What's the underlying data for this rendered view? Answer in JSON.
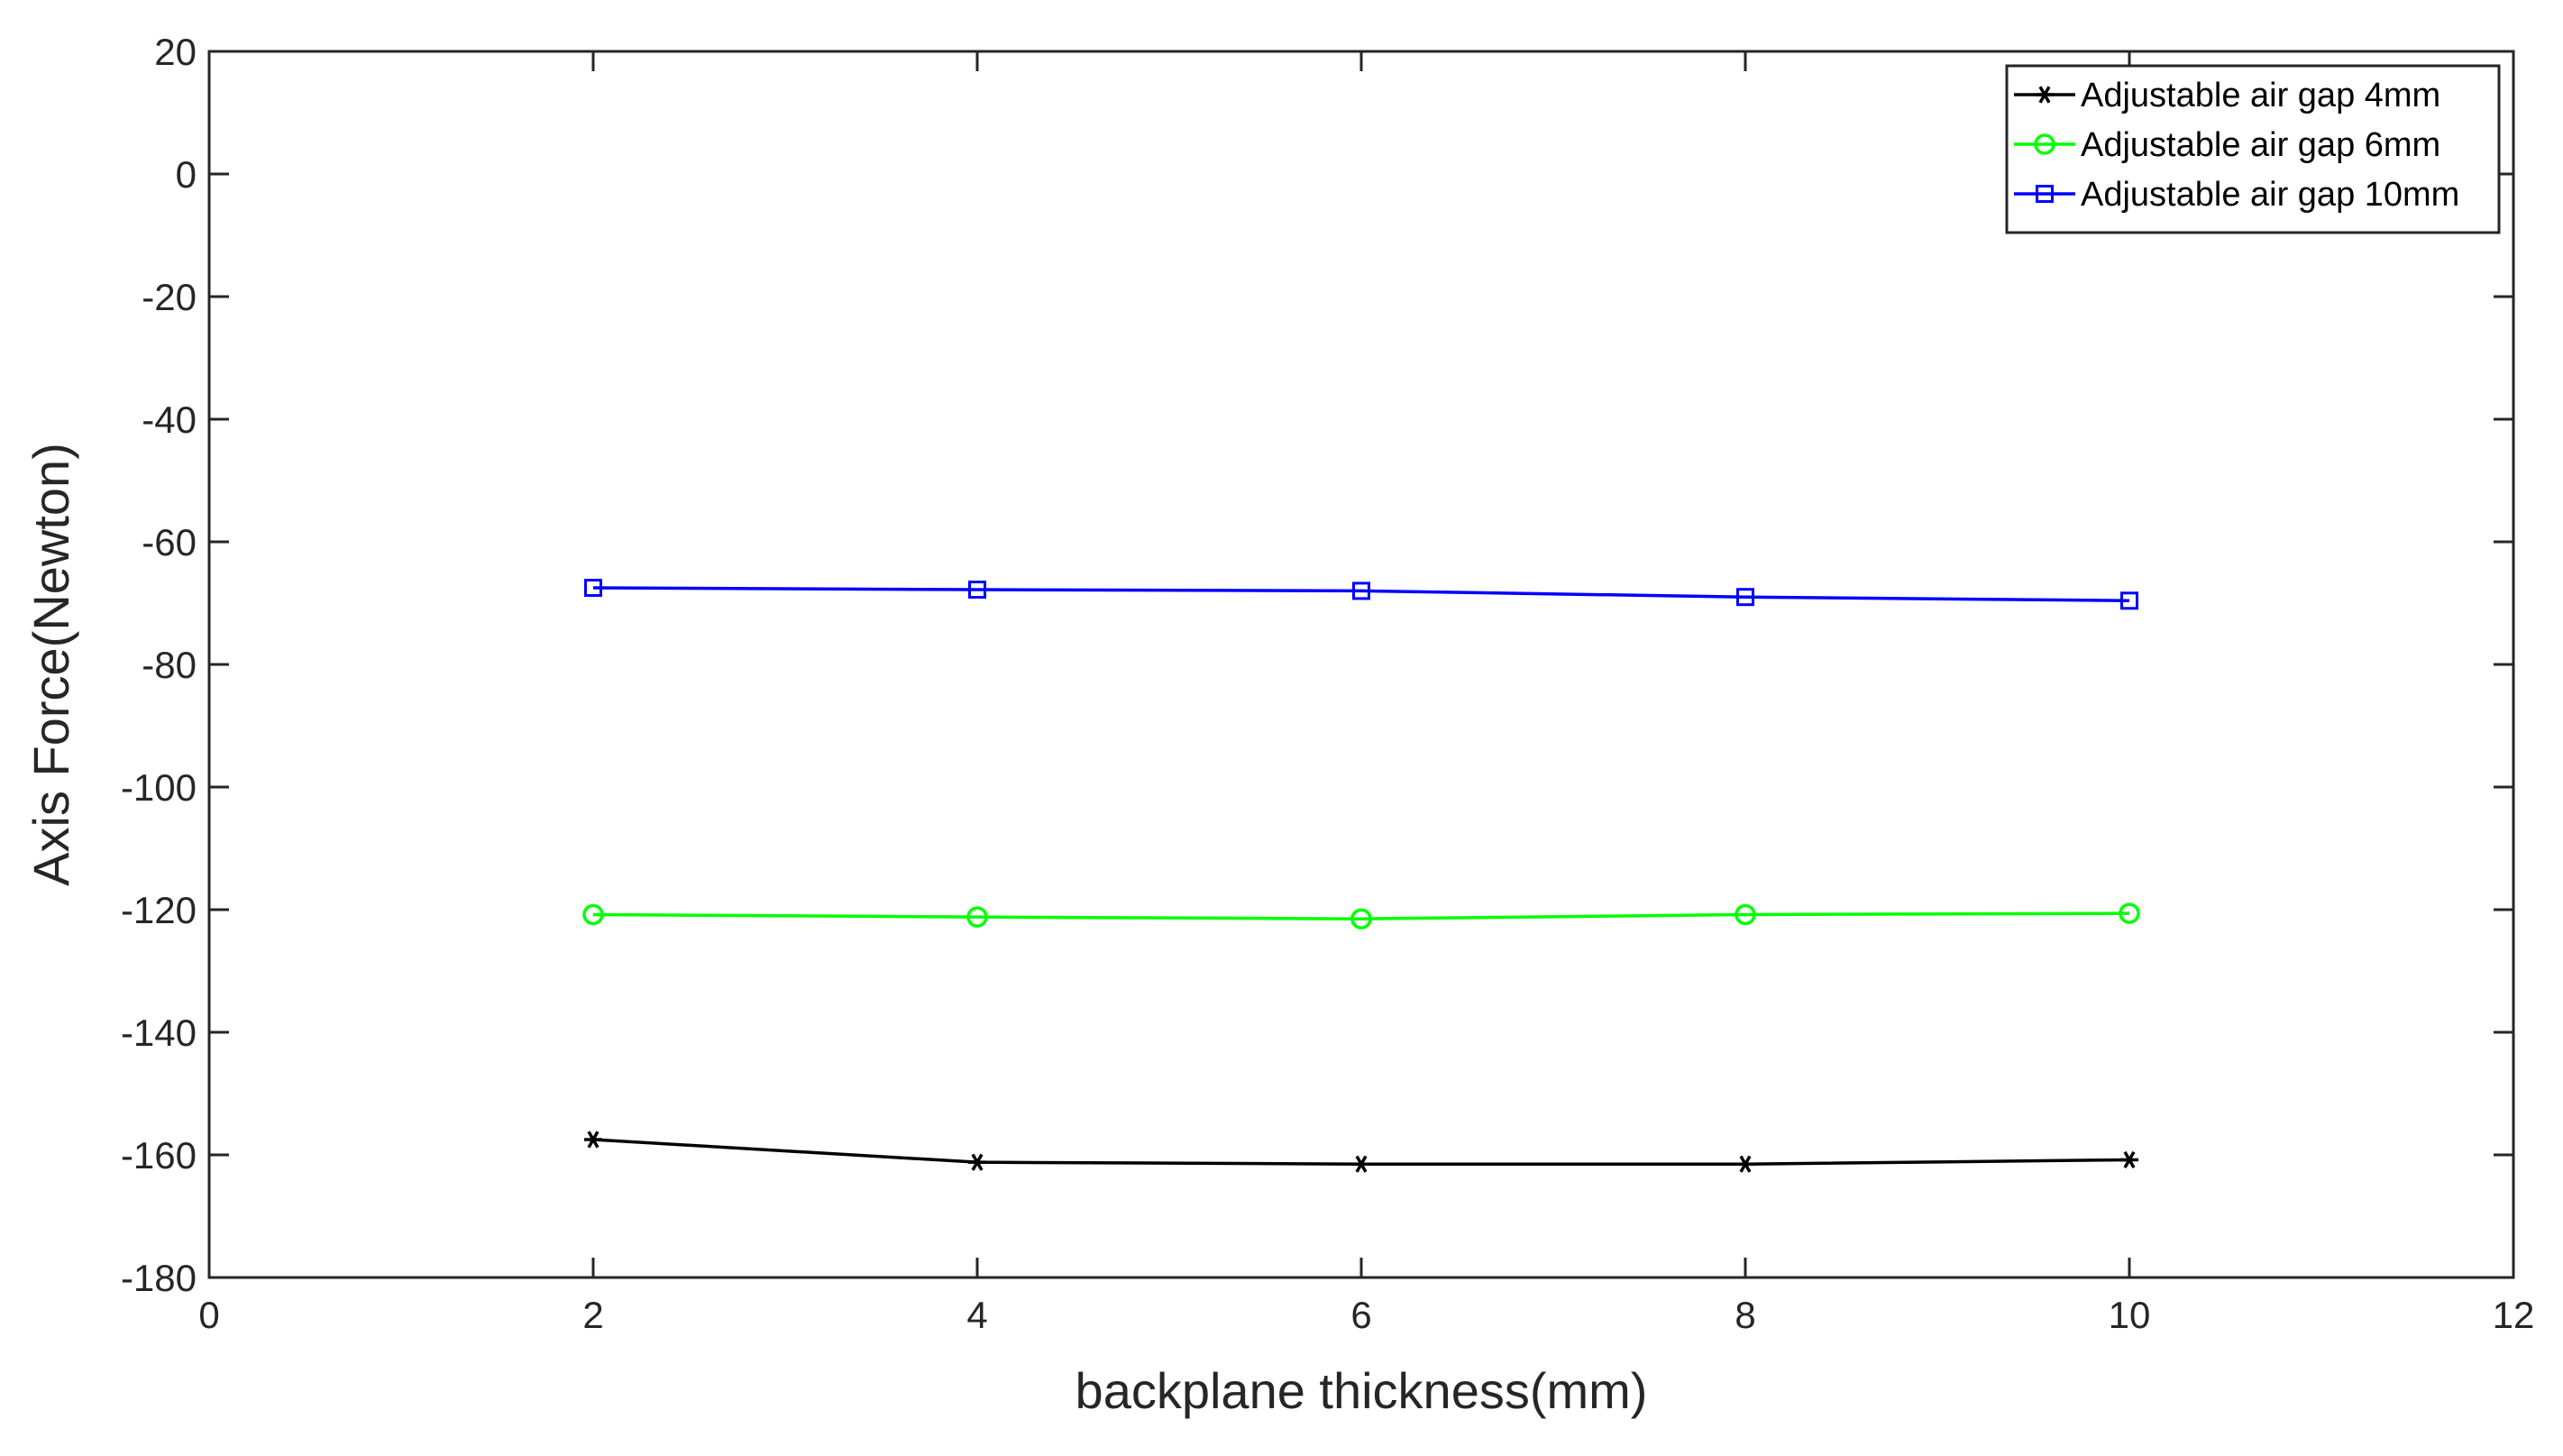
{
  "chart_data": {
    "type": "line",
    "title": "",
    "xlabel": "backplane thickness(mm)",
    "ylabel": "Axis Force(Newton)",
    "xlim": [
      0,
      12
    ],
    "ylim": [
      -180,
      20
    ],
    "xticks": [
      0,
      2,
      4,
      6,
      8,
      10,
      12
    ],
    "yticks": [
      20,
      0,
      -20,
      -40,
      -60,
      -80,
      -100,
      -120,
      -140,
      -160,
      -180
    ],
    "grid": false,
    "legend_position": "top-right",
    "x": [
      2,
      4,
      6,
      8,
      10
    ],
    "series": [
      {
        "name": "Adjustable air gap 4mm",
        "color": "#000000",
        "marker": "asterisk",
        "values": [
          -157.5,
          -161.2,
          -161.5,
          -161.5,
          -160.8
        ]
      },
      {
        "name": "Adjustable air gap 6mm",
        "color": "#00ff00",
        "marker": "circle",
        "values": [
          -120.8,
          -121.2,
          -121.5,
          -120.8,
          -120.6
        ]
      },
      {
        "name": "Adjustable air gap 10mm",
        "color": "#0000ff",
        "marker": "square",
        "values": [
          -67.5,
          -67.8,
          -68.0,
          -69.0,
          -69.6
        ]
      }
    ]
  }
}
